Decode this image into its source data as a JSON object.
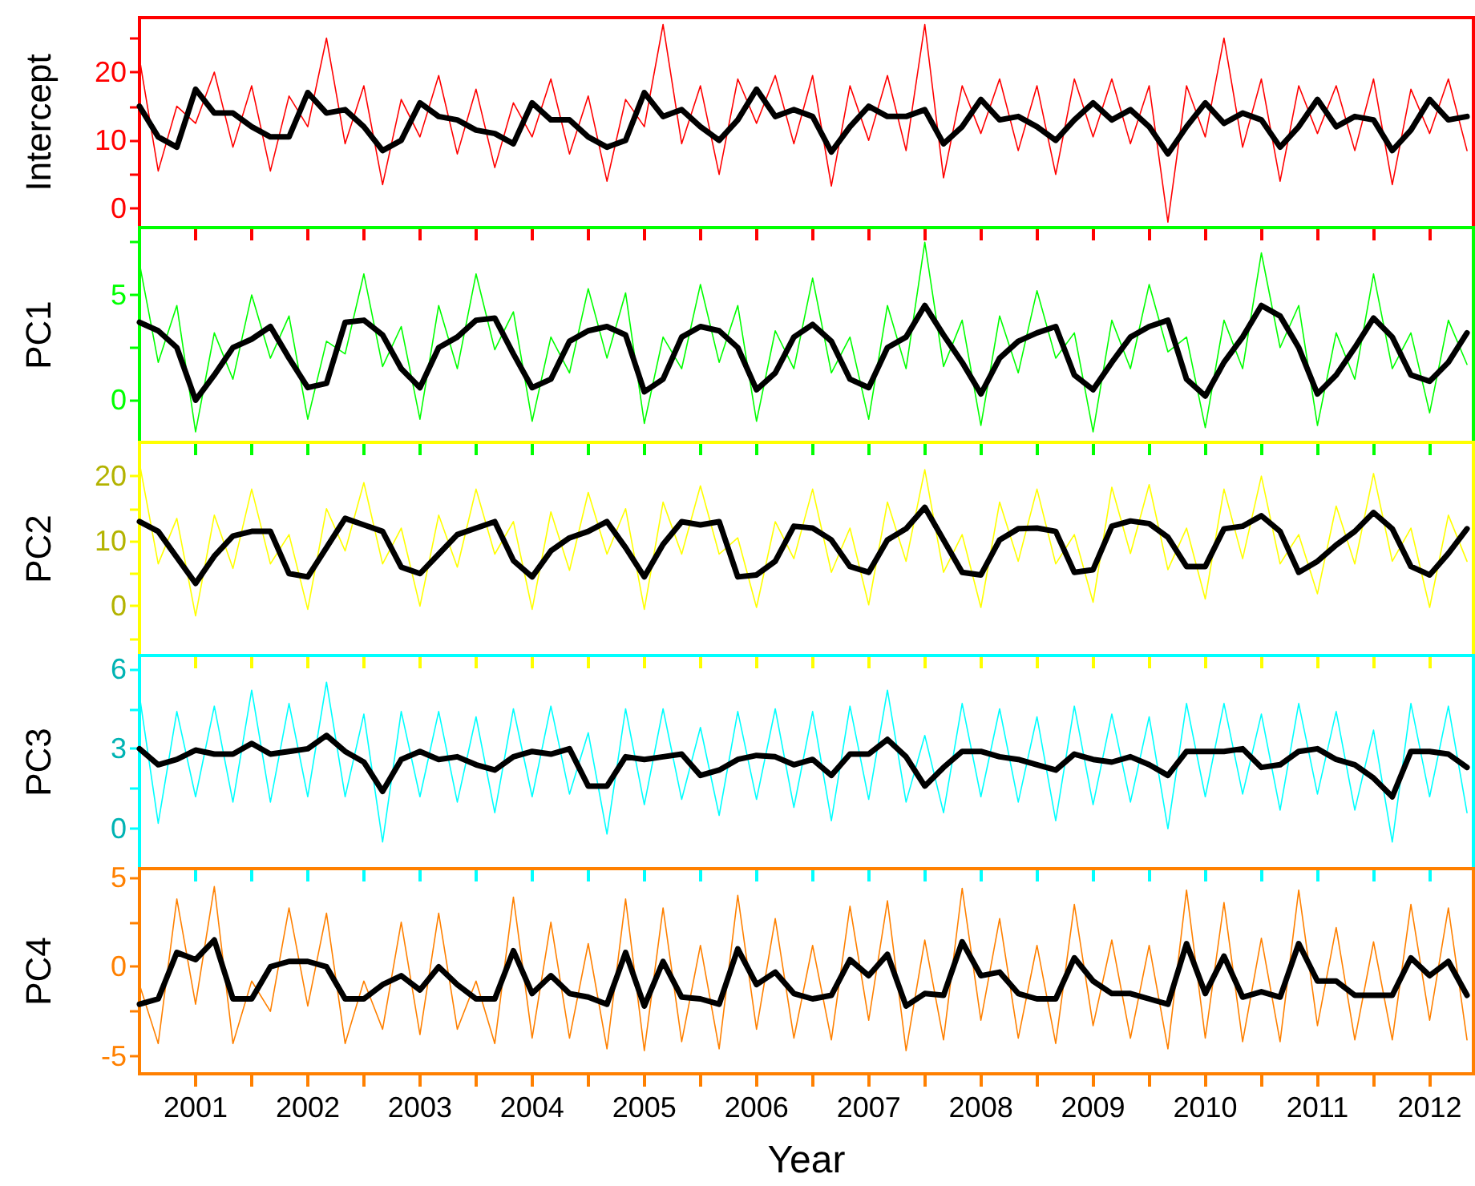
{
  "chart_data": [
    {
      "type": "line",
      "ylabel": "Intercept",
      "tick_labels": "y",
      "x": [
        2000.5,
        2000.667,
        2000.833,
        2001,
        2001.167,
        2001.333,
        2001.5,
        2001.667,
        2001.833,
        2002,
        2002.167,
        2002.333,
        2002.5,
        2002.667,
        2002.833,
        2003,
        2003.167,
        2003.333,
        2003.5,
        2003.667,
        2003.833,
        2004,
        2004.167,
        2004.333,
        2004.5,
        2004.667,
        2004.833,
        2005,
        2005.167,
        2005.333,
        2005.5,
        2005.667,
        2005.833,
        2006,
        2006.167,
        2006.333,
        2006.5,
        2006.667,
        2006.833,
        2007,
        2007.167,
        2007.333,
        2007.5,
        2007.667,
        2007.833,
        2008,
        2008.167,
        2008.333,
        2008.5,
        2008.667,
        2008.833,
        2009,
        2009.167,
        2009.333,
        2009.5,
        2009.667,
        2009.833,
        2010,
        2010.167,
        2010.333,
        2010.5,
        2010.667,
        2010.833,
        2011,
        2011.167,
        2011.333,
        2011.5,
        2011.667,
        2011.833,
        2012,
        2012.167,
        2012.333
      ],
      "xlim": [
        2000.5,
        2012.39
      ],
      "xticks": [
        {
          "value": 2001,
          "label": null
        },
        {
          "value": 2001.5,
          "label": null
        },
        {
          "value": 2002,
          "label": null
        },
        {
          "value": 2002.5,
          "label": null
        },
        {
          "value": 2003,
          "label": null
        },
        {
          "value": 2003.5,
          "label": null
        },
        {
          "value": 2004,
          "label": null
        },
        {
          "value": 2004.5,
          "label": null
        },
        {
          "value": 2005,
          "label": null
        },
        {
          "value": 2005.5,
          "label": null
        },
        {
          "value": 2006,
          "label": null
        },
        {
          "value": 2006.5,
          "label": null
        },
        {
          "value": 2007,
          "label": null
        },
        {
          "value": 2007.5,
          "label": null
        },
        {
          "value": 2008,
          "label": null
        },
        {
          "value": 2008.5,
          "label": null
        },
        {
          "value": 2009,
          "label": null
        },
        {
          "value": 2009.5,
          "label": null
        },
        {
          "value": 2010,
          "label": null
        },
        {
          "value": 2010.5,
          "label": null
        },
        {
          "value": 2011,
          "label": null
        },
        {
          "value": 2011.5,
          "label": null
        },
        {
          "value": 2012,
          "label": null
        }
      ],
      "ylim": [
        -2.8,
        28
      ],
      "yticks": [
        0,
        {
          "value": 5,
          "label": null
        },
        10,
        {
          "value": 15,
          "label": null
        },
        20,
        {
          "value": 25,
          "label": null
        }
      ],
      "series": [
        {
          "color": "#ff0000",
          "values": [
            22,
            5.5,
            15,
            12.5,
            20,
            9,
            18,
            5.5,
            16.5,
            12,
            25,
            9.5,
            18,
            3.5,
            16,
            10.5,
            19.5,
            8,
            17.5,
            6,
            15.5,
            10.5,
            19,
            8,
            16.5,
            4,
            16,
            12,
            27,
            9.5,
            18,
            5,
            19,
            12.5,
            19.5,
            9.5,
            19.5,
            3.3,
            18,
            10,
            19.5,
            8.5,
            27,
            4.5,
            18,
            11,
            19,
            8.5,
            18,
            5,
            19,
            10.5,
            19,
            9.5,
            18,
            -2,
            18,
            10.5,
            25,
            9,
            19,
            4,
            18,
            11,
            18,
            8.5,
            19,
            3.5,
            17.5,
            11,
            19,
            8.5
          ]
        },
        {
          "color": "#000000",
          "values": [
            15,
            10.5,
            9,
            17.5,
            14,
            14,
            12,
            10.5,
            10.5,
            17,
            14,
            14.5,
            12,
            8.5,
            10,
            15.5,
            13.5,
            13,
            11.5,
            11,
            9.5,
            15.5,
            13,
            13,
            10.5,
            9,
            10,
            17,
            13.5,
            14.5,
            12,
            10,
            13,
            17.5,
            13.5,
            14.5,
            13.5,
            8.3,
            12,
            15,
            13.5,
            13.5,
            14.5,
            9.5,
            12,
            16,
            13,
            13.5,
            12,
            10,
            13,
            15.5,
            13,
            14.5,
            12,
            8,
            12,
            15.5,
            12.5,
            14,
            13,
            9,
            12,
            16,
            12,
            13.5,
            13,
            8.5,
            11.5,
            16,
            13,
            13.5
          ]
        }
      ]
    },
    {
      "type": "line",
      "ylabel": "PC1",
      "tick_labels": "y",
      "x": [
        2000.5,
        2000.667,
        2000.833,
        2001,
        2001.167,
        2001.333,
        2001.5,
        2001.667,
        2001.833,
        2002,
        2002.167,
        2002.333,
        2002.5,
        2002.667,
        2002.833,
        2003,
        2003.167,
        2003.333,
        2003.5,
        2003.667,
        2003.833,
        2004,
        2004.167,
        2004.333,
        2004.5,
        2004.667,
        2004.833,
        2005,
        2005.167,
        2005.333,
        2005.5,
        2005.667,
        2005.833,
        2006,
        2006.167,
        2006.333,
        2006.5,
        2006.667,
        2006.833,
        2007,
        2007.167,
        2007.333,
        2007.5,
        2007.667,
        2007.833,
        2008,
        2008.167,
        2008.333,
        2008.5,
        2008.667,
        2008.833,
        2009,
        2009.167,
        2009.333,
        2009.5,
        2009.667,
        2009.833,
        2010,
        2010.167,
        2010.333,
        2010.5,
        2010.667,
        2010.833,
        2011,
        2011.167,
        2011.333,
        2011.5,
        2011.667,
        2011.833,
        2012,
        2012.167,
        2012.333
      ],
      "xlim": [
        2000.5,
        2012.39
      ],
      "xticks": [
        {
          "value": 2001,
          "label": null
        },
        {
          "value": 2001.5,
          "label": null
        },
        {
          "value": 2002,
          "label": null
        },
        {
          "value": 2002.5,
          "label": null
        },
        {
          "value": 2003,
          "label": null
        },
        {
          "value": 2003.5,
          "label": null
        },
        {
          "value": 2004,
          "label": null
        },
        {
          "value": 2004.5,
          "label": null
        },
        {
          "value": 2005,
          "label": null
        },
        {
          "value": 2005.5,
          "label": null
        },
        {
          "value": 2006,
          "label": null
        },
        {
          "value": 2006.5,
          "label": null
        },
        {
          "value": 2007,
          "label": null
        },
        {
          "value": 2007.5,
          "label": null
        },
        {
          "value": 2008,
          "label": null
        },
        {
          "value": 2008.5,
          "label": null
        },
        {
          "value": 2009,
          "label": null
        },
        {
          "value": 2009.5,
          "label": null
        },
        {
          "value": 2010,
          "label": null
        },
        {
          "value": 2010.5,
          "label": null
        },
        {
          "value": 2011,
          "label": null
        },
        {
          "value": 2011.5,
          "label": null
        },
        {
          "value": 2012,
          "label": null
        }
      ],
      "ylim": [
        -2,
        8.2
      ],
      "yticks": [
        0,
        {
          "value": 2.5,
          "label": null
        },
        5,
        {
          "value": 7.5,
          "label": null
        }
      ],
      "series": [
        {
          "color": "#00ff00",
          "values": [
            6.5,
            1.8,
            4.5,
            -1.5,
            3.2,
            1,
            5,
            2,
            4,
            -0.9,
            2.8,
            2.2,
            6,
            1.6,
            3.5,
            -0.9,
            4.5,
            1.5,
            6,
            2.4,
            4.2,
            -1,
            3,
            1.3,
            5.3,
            2,
            5.1,
            -1.1,
            3,
            1.5,
            5.5,
            1.8,
            4.5,
            -1,
            3.3,
            1.5,
            5.8,
            1.3,
            3,
            -0.9,
            4.5,
            1.5,
            7.5,
            1.6,
            3.8,
            -1.2,
            4,
            1.3,
            5.2,
            2,
            3.2,
            -1.5,
            3.8,
            1.5,
            5.5,
            2.3,
            3,
            -1.3,
            3.8,
            1.5,
            7,
            2.5,
            4.5,
            -1.2,
            3.2,
            1,
            6,
            1.5,
            3.2,
            -0.6,
            3.8,
            1.7
          ]
        },
        {
          "color": "#000000",
          "values": [
            3.7,
            3.3,
            2.5,
            0,
            1.2,
            2.5,
            2.9,
            3.5,
            2.0,
            0.6,
            0.8,
            3.7,
            3.8,
            3.1,
            1.5,
            0.6,
            2.5,
            3.0,
            3.8,
            3.9,
            2.2,
            0.6,
            1.0,
            2.8,
            3.3,
            3.5,
            3.1,
            0.4,
            1.0,
            3.0,
            3.5,
            3.3,
            2.5,
            0.5,
            1.3,
            3.0,
            3.6,
            2.8,
            1.0,
            0.6,
            2.5,
            3.0,
            4.5,
            3.1,
            1.8,
            0.3,
            2.0,
            2.8,
            3.2,
            3.5,
            1.2,
            0.5,
            1.8,
            3.0,
            3.5,
            3.8,
            1.0,
            0.2,
            1.8,
            3.0,
            4.5,
            4.0,
            2.5,
            0.3,
            1.2,
            2.5,
            3.9,
            3.0,
            1.2,
            0.9,
            1.8,
            3.2
          ]
        }
      ]
    },
    {
      "type": "line",
      "ylabel": "PC2",
      "tick_labels": "y",
      "x": [
        2000.5,
        2000.667,
        2000.833,
        2001,
        2001.167,
        2001.333,
        2001.5,
        2001.667,
        2001.833,
        2002,
        2002.167,
        2002.333,
        2002.5,
        2002.667,
        2002.833,
        2003,
        2003.167,
        2003.333,
        2003.5,
        2003.667,
        2003.833,
        2004,
        2004.167,
        2004.333,
        2004.5,
        2004.667,
        2004.833,
        2005,
        2005.167,
        2005.333,
        2005.5,
        2005.667,
        2005.833,
        2006,
        2006.167,
        2006.333,
        2006.5,
        2006.667,
        2006.833,
        2007,
        2007.167,
        2007.333,
        2007.5,
        2007.667,
        2007.833,
        2008,
        2008.167,
        2008.333,
        2008.5,
        2008.667,
        2008.833,
        2009,
        2009.167,
        2009.333,
        2009.5,
        2009.667,
        2009.833,
        2010,
        2010.167,
        2010.333,
        2010.5,
        2010.667,
        2010.833,
        2011,
        2011.167,
        2011.333,
        2011.5,
        2011.667,
        2011.833,
        2012,
        2012.167,
        2012.333
      ],
      "xlim": [
        2000.5,
        2012.39
      ],
      "xticks": [
        {
          "value": 2001,
          "label": null
        },
        {
          "value": 2001.5,
          "label": null
        },
        {
          "value": 2002,
          "label": null
        },
        {
          "value": 2002.5,
          "label": null
        },
        {
          "value": 2003,
          "label": null
        },
        {
          "value": 2003.5,
          "label": null
        },
        {
          "value": 2004,
          "label": null
        },
        {
          "value": 2004.5,
          "label": null
        },
        {
          "value": 2005,
          "label": null
        },
        {
          "value": 2005.5,
          "label": null
        },
        {
          "value": 2006,
          "label": null
        },
        {
          "value": 2006.5,
          "label": null
        },
        {
          "value": 2007,
          "label": null
        },
        {
          "value": 2007.5,
          "label": null
        },
        {
          "value": 2008,
          "label": null
        },
        {
          "value": 2008.5,
          "label": null
        },
        {
          "value": 2009,
          "label": null
        },
        {
          "value": 2009.5,
          "label": null
        },
        {
          "value": 2010,
          "label": null
        },
        {
          "value": 2010.5,
          "label": null
        },
        {
          "value": 2011,
          "label": null
        },
        {
          "value": 2011.5,
          "label": null
        },
        {
          "value": 2012,
          "label": null
        }
      ],
      "ylim": [
        -7.6,
        25.2
      ],
      "yticks": [
        {
          "value": -5,
          "label": null
        },
        0,
        {
          "value": 5,
          "label": null
        },
        10,
        {
          "value": 15,
          "label": null
        },
        20
      ],
      "series": [
        {
          "color": "#ffff00",
          "values": [
            22,
            6.5,
            13.5,
            -1.5,
            14,
            5.8,
            18,
            6.5,
            11,
            -0.5,
            15,
            8.5,
            19,
            6.5,
            12,
            0,
            14,
            6,
            18,
            8,
            13,
            -0.5,
            14.5,
            5.5,
            17.5,
            8,
            15,
            -0.5,
            16,
            8,
            18.5,
            8,
            10.5,
            -0.2,
            13,
            7.3,
            18,
            5.2,
            12,
            0.2,
            16,
            6.9,
            21,
            5.2,
            11,
            -0.2,
            16,
            6.9,
            18,
            6.5,
            11,
            0.6,
            18.3,
            8.1,
            18.7,
            5.6,
            12,
            1.1,
            18,
            7.3,
            20,
            6.5,
            11,
            1.9,
            15.4,
            6.5,
            20.4,
            6.9,
            12,
            -0.2,
            14,
            6.9
          ]
        },
        {
          "color": "#000000",
          "values": [
            13,
            11.5,
            7.5,
            3.5,
            7.7,
            10.8,
            11.5,
            11.5,
            5,
            4.5,
            9,
            13.5,
            12.5,
            11.5,
            6,
            5,
            8,
            11,
            12,
            13,
            7,
            4.5,
            8.5,
            10.5,
            11.5,
            13,
            9,
            4.5,
            9.5,
            13,
            12.5,
            13,
            4.5,
            4.8,
            6.9,
            12.3,
            12,
            10.2,
            6.1,
            5.2,
            10.2,
            11.9,
            15.2,
            10.2,
            5.2,
            4.8,
            10.2,
            11.9,
            12,
            11.5,
            5.2,
            5.6,
            12.3,
            13.1,
            12.7,
            10.6,
            6.1,
            6.1,
            11.9,
            12.3,
            13.9,
            11.5,
            5.2,
            6.9,
            9.4,
            11.5,
            14.4,
            11.9,
            6.1,
            4.8,
            8.1,
            11.9
          ]
        }
      ]
    },
    {
      "type": "line",
      "ylabel": "PC3",
      "tick_labels": "y",
      "x": [
        2000.5,
        2000.667,
        2000.833,
        2001,
        2001.167,
        2001.333,
        2001.5,
        2001.667,
        2001.833,
        2002,
        2002.167,
        2002.333,
        2002.5,
        2002.667,
        2002.833,
        2003,
        2003.167,
        2003.333,
        2003.5,
        2003.667,
        2003.833,
        2004,
        2004.167,
        2004.333,
        2004.5,
        2004.667,
        2004.833,
        2005,
        2005.167,
        2005.333,
        2005.5,
        2005.667,
        2005.833,
        2006,
        2006.167,
        2006.333,
        2006.5,
        2006.667,
        2006.833,
        2007,
        2007.167,
        2007.333,
        2007.5,
        2007.667,
        2007.833,
        2008,
        2008.167,
        2008.333,
        2008.5,
        2008.667,
        2008.833,
        2009,
        2009.167,
        2009.333,
        2009.5,
        2009.667,
        2009.833,
        2010,
        2010.167,
        2010.333,
        2010.5,
        2010.667,
        2010.833,
        2011,
        2011.167,
        2011.333,
        2011.5,
        2011.667,
        2011.833,
        2012,
        2012.167,
        2012.333
      ],
      "xlim": [
        2000.5,
        2012.39
      ],
      "xticks": [
        {
          "value": 2001,
          "label": null
        },
        {
          "value": 2001.5,
          "label": null
        },
        {
          "value": 2002,
          "label": null
        },
        {
          "value": 2002.5,
          "label": null
        },
        {
          "value": 2003,
          "label": null
        },
        {
          "value": 2003.5,
          "label": null
        },
        {
          "value": 2004,
          "label": null
        },
        {
          "value": 2004.5,
          "label": null
        },
        {
          "value": 2005,
          "label": null
        },
        {
          "value": 2005.5,
          "label": null
        },
        {
          "value": 2006,
          "label": null
        },
        {
          "value": 2006.5,
          "label": null
        },
        {
          "value": 2007,
          "label": null
        },
        {
          "value": 2007.5,
          "label": null
        },
        {
          "value": 2008,
          "label": null
        },
        {
          "value": 2008.5,
          "label": null
        },
        {
          "value": 2009,
          "label": null
        },
        {
          "value": 2009.5,
          "label": null
        },
        {
          "value": 2010,
          "label": null
        },
        {
          "value": 2010.5,
          "label": null
        },
        {
          "value": 2011,
          "label": null
        },
        {
          "value": 2011.5,
          "label": null
        },
        {
          "value": 2012,
          "label": null
        }
      ],
      "ylim": [
        -1.5,
        6.5
      ],
      "yticks": [
        0,
        {
          "value": 1.5,
          "label": null
        },
        3,
        {
          "value": 4.5,
          "label": null
        },
        6
      ],
      "series": [
        {
          "color": "#00ffff",
          "values": [
            5,
            0.2,
            4.4,
            1.2,
            4.6,
            1,
            5.2,
            1,
            4.7,
            1.2,
            5.5,
            1.2,
            4.3,
            -0.5,
            4.4,
            1.2,
            4.4,
            1,
            4.2,
            0.6,
            4.5,
            1.2,
            4.6,
            1.3,
            3.6,
            -0.2,
            4.5,
            0.9,
            4.5,
            1.1,
            3.8,
            0.5,
            4.4,
            1.1,
            4.5,
            0.8,
            4.4,
            0.3,
            4.6,
            1.1,
            5.2,
            1,
            3.5,
            0.6,
            4.7,
            1.2,
            4.5,
            1,
            4.2,
            0.3,
            4.6,
            0.9,
            4.3,
            1,
            4.2,
            0,
            4.7,
            1.2,
            4.7,
            1.3,
            4.3,
            0.7,
            4.7,
            1.3,
            4.4,
            0.7,
            3.7,
            -0.5,
            4.7,
            1.2,
            4.6,
            0.6
          ]
        },
        {
          "color": "#000000",
          "values": [
            3.0,
            2.4,
            2.6,
            2.95,
            2.8,
            2.8,
            3.2,
            2.8,
            2.9,
            3.0,
            3.5,
            2.9,
            2.5,
            1.4,
            2.6,
            2.9,
            2.6,
            2.7,
            2.4,
            2.2,
            2.7,
            2.9,
            2.8,
            3.0,
            1.6,
            1.6,
            2.7,
            2.6,
            2.7,
            2.8,
            2.0,
            2.2,
            2.6,
            2.75,
            2.7,
            2.4,
            2.6,
            2.0,
            2.8,
            2.8,
            3.35,
            2.7,
            1.6,
            2.3,
            2.9,
            2.9,
            2.7,
            2.6,
            2.4,
            2.2,
            2.8,
            2.6,
            2.5,
            2.7,
            2.4,
            2.0,
            2.9,
            2.9,
            2.9,
            3.0,
            2.3,
            2.4,
            2.9,
            3.0,
            2.6,
            2.4,
            1.9,
            1.2,
            2.9,
            2.9,
            2.8,
            2.3
          ]
        }
      ]
    },
    {
      "type": "line",
      "ylabel": "PC4",
      "xlabel": "Year",
      "x": [
        2000.5,
        2000.667,
        2000.833,
        2001,
        2001.167,
        2001.333,
        2001.5,
        2001.667,
        2001.833,
        2002,
        2002.167,
        2002.333,
        2002.5,
        2002.667,
        2002.833,
        2003,
        2003.167,
        2003.333,
        2003.5,
        2003.667,
        2003.833,
        2004,
        2004.167,
        2004.333,
        2004.5,
        2004.667,
        2004.833,
        2005,
        2005.167,
        2005.333,
        2005.5,
        2005.667,
        2005.833,
        2006,
        2006.167,
        2006.333,
        2006.5,
        2006.667,
        2006.833,
        2007,
        2007.167,
        2007.333,
        2007.5,
        2007.667,
        2007.833,
        2008,
        2008.167,
        2008.333,
        2008.5,
        2008.667,
        2008.833,
        2009,
        2009.167,
        2009.333,
        2009.5,
        2009.667,
        2009.833,
        2010,
        2010.167,
        2010.333,
        2010.5,
        2010.667,
        2010.833,
        2011,
        2011.167,
        2011.333,
        2011.5,
        2011.667,
        2011.833,
        2012,
        2012.167,
        2012.333
      ],
      "xlim": [
        2000.5,
        2012.39
      ],
      "xticks": [
        {
          "value": 2001,
          "label": "2001"
        },
        {
          "value": 2001.5,
          "label": null
        },
        {
          "value": 2002,
          "label": "2002"
        },
        {
          "value": 2002.5,
          "label": null
        },
        {
          "value": 2003,
          "label": "2003"
        },
        {
          "value": 2003.5,
          "label": null
        },
        {
          "value": 2004,
          "label": "2004"
        },
        {
          "value": 2004.5,
          "label": null
        },
        {
          "value": 2005,
          "label": "2005"
        },
        {
          "value": 2005.5,
          "label": null
        },
        {
          "value": 2006,
          "label": "2006"
        },
        {
          "value": 2006.5,
          "label": null
        },
        {
          "value": 2007,
          "label": "2007"
        },
        {
          "value": 2007.5,
          "label": null
        },
        {
          "value": 2008,
          "label": "2008"
        },
        {
          "value": 2008.5,
          "label": null
        },
        {
          "value": 2009,
          "label": "2009"
        },
        {
          "value": 2009.5,
          "label": null
        },
        {
          "value": 2010,
          "label": "2010"
        },
        {
          "value": 2010.5,
          "label": null
        },
        {
          "value": 2011,
          "label": "2011"
        },
        {
          "value": 2011.5,
          "label": null
        },
        {
          "value": 2012,
          "label": "2012"
        }
      ],
      "ylim": [
        -6,
        5.5
      ],
      "yticks": [
        -5,
        {
          "value": -2.5,
          "label": null
        },
        0,
        {
          "value": 2.5,
          "label": null
        },
        5
      ],
      "series": [
        {
          "color": "#ff8000",
          "values": [
            -1,
            -4.3,
            3.8,
            -2.1,
            4.5,
            -4.3,
            -0.8,
            -2.5,
            3.3,
            -2.2,
            3,
            -4.3,
            -0.8,
            -3.5,
            2.5,
            -3.8,
            3,
            -3.5,
            -0.8,
            -4.3,
            3.9,
            -4,
            2.5,
            -4,
            1.3,
            -4.6,
            3.8,
            -4.7,
            3.3,
            -4.2,
            1.2,
            -4.6,
            4,
            -3.5,
            2.7,
            -4,
            1.2,
            -4.1,
            3.4,
            -3,
            3.7,
            -4.7,
            1.5,
            -4.1,
            4.4,
            -3,
            2.7,
            -4,
            1.2,
            -4.3,
            3.5,
            -3.3,
            1.5,
            -4,
            1.2,
            -4.6,
            4.3,
            -4,
            3.6,
            -4.2,
            1.6,
            -4.2,
            4.3,
            -3.3,
            2.2,
            -4.1,
            1.4,
            -4.1,
            3.5,
            -3,
            3.3,
            -4.1
          ]
        },
        {
          "color": "#000000",
          "values": [
            -2.1,
            -1.8,
            0.8,
            0.4,
            1.5,
            -1.8,
            -1.8,
            0,
            0.3,
            0.3,
            0,
            -1.8,
            -1.8,
            -1.0,
            -0.5,
            -1.3,
            0,
            -1.0,
            -1.8,
            -1.8,
            0.9,
            -1.5,
            -0.5,
            -1.5,
            -1.7,
            -2.1,
            0.8,
            -2.2,
            0.3,
            -1.7,
            -1.8,
            -2.1,
            1.0,
            -1.0,
            -0.3,
            -1.5,
            -1.8,
            -1.6,
            0.4,
            -0.5,
            0.7,
            -2.2,
            -1.5,
            -1.6,
            1.4,
            -0.5,
            -0.3,
            -1.5,
            -1.8,
            -1.8,
            0.5,
            -0.8,
            -1.5,
            -1.5,
            -1.8,
            -2.1,
            1.3,
            -1.5,
            0.6,
            -1.7,
            -1.4,
            -1.7,
            1.3,
            -0.8,
            -0.8,
            -1.6,
            -1.6,
            -1.6,
            0.5,
            -0.5,
            0.3,
            -1.6
          ]
        }
      ]
    }
  ]
}
